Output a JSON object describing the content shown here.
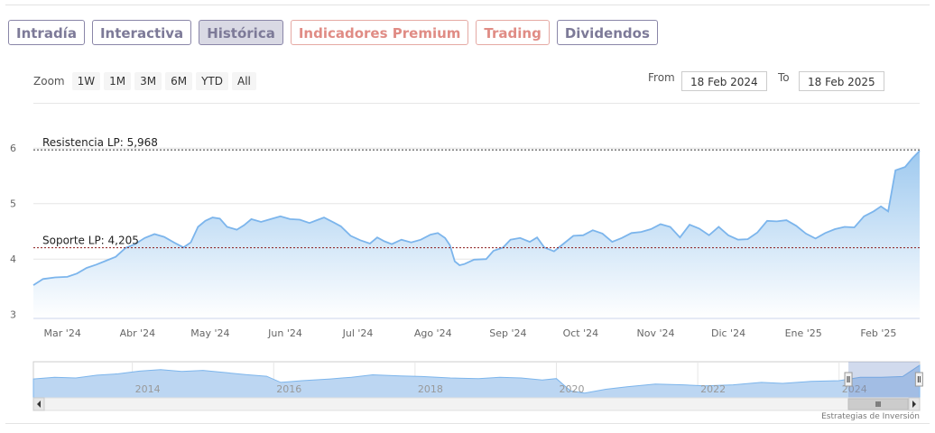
{
  "tabs": [
    {
      "label": "Intradía",
      "active": false,
      "premium": false
    },
    {
      "label": "Interactiva",
      "active": false,
      "premium": false
    },
    {
      "label": "Histórica",
      "active": true,
      "premium": false
    },
    {
      "label": "Indicadores Premium",
      "active": false,
      "premium": true
    },
    {
      "label": "Trading",
      "active": false,
      "premium": true
    },
    {
      "label": "Dividendos",
      "active": false,
      "premium": false
    }
  ],
  "zoom": {
    "label": "Zoom",
    "buttons": [
      "1W",
      "1M",
      "3M",
      "6M",
      "YTD",
      "All"
    ]
  },
  "range": {
    "from_label": "From",
    "from_value": "18 Feb 2024",
    "to_label": "To",
    "to_value": "18 Feb 2025"
  },
  "credit": "Estrategias de Inversión",
  "colors": {
    "line": "#7cb5ec",
    "fill_top": "#9ec9ef",
    "fill_bottom": "#ffffff",
    "tab_text": "#7d7a98",
    "premium_text": "#e08c85",
    "resistance": "#333333",
    "support": "#8b1a1a"
  },
  "chart_data": {
    "type": "area",
    "x_ticks": [
      "Mar '24",
      "Abr '24",
      "May '24",
      "Jun '24",
      "Jul '24",
      "Ago '24",
      "Sep '24",
      "Oct '24",
      "Nov '24",
      "Dic '24",
      "Ene '25",
      "Feb '25"
    ],
    "y_ticks": [
      3,
      4,
      5,
      6
    ],
    "ylim": [
      2.93,
      6.8
    ],
    "xlim": [
      "2024-02-18",
      "2025-02-18"
    ],
    "plot_lines": [
      {
        "label": "Resistencia LP: 5,968",
        "value": 5.968,
        "style": "dashed"
      },
      {
        "label": "Soporte LP: 4,205",
        "value": 4.205,
        "style": "dashed"
      }
    ],
    "series": [
      {
        "points": [
          [
            "2024-02-18",
            3.53
          ],
          [
            "2024-02-22",
            3.64
          ],
          [
            "2024-02-27",
            3.67
          ],
          [
            "2024-03-03",
            3.68
          ],
          [
            "2024-03-07",
            3.74
          ],
          [
            "2024-03-11",
            3.84
          ],
          [
            "2024-03-15",
            3.9
          ],
          [
            "2024-03-19",
            3.97
          ],
          [
            "2024-03-23",
            4.04
          ],
          [
            "2024-03-27",
            4.2
          ],
          [
            "2024-03-31",
            4.27
          ],
          [
            "2024-04-04",
            4.38
          ],
          [
            "2024-04-08",
            4.45
          ],
          [
            "2024-04-12",
            4.4
          ],
          [
            "2024-04-16",
            4.3
          ],
          [
            "2024-04-20",
            4.21
          ],
          [
            "2024-04-23",
            4.3
          ],
          [
            "2024-04-26",
            4.58
          ],
          [
            "2024-04-29",
            4.69
          ],
          [
            "2024-05-02",
            4.75
          ],
          [
            "2024-05-05",
            4.73
          ],
          [
            "2024-05-08",
            4.58
          ],
          [
            "2024-05-12",
            4.53
          ],
          [
            "2024-05-15",
            4.61
          ],
          [
            "2024-05-18",
            4.72
          ],
          [
            "2024-05-22",
            4.67
          ],
          [
            "2024-05-26",
            4.72
          ],
          [
            "2024-05-30",
            4.77
          ],
          [
            "2024-06-03",
            4.72
          ],
          [
            "2024-06-07",
            4.71
          ],
          [
            "2024-06-11",
            4.65
          ],
          [
            "2024-06-14",
            4.7
          ],
          [
            "2024-06-17",
            4.75
          ],
          [
            "2024-06-21",
            4.66
          ],
          [
            "2024-06-24",
            4.59
          ],
          [
            "2024-06-28",
            4.42
          ],
          [
            "2024-07-02",
            4.34
          ],
          [
            "2024-07-06",
            4.28
          ],
          [
            "2024-07-09",
            4.39
          ],
          [
            "2024-07-12",
            4.32
          ],
          [
            "2024-07-15",
            4.27
          ],
          [
            "2024-07-19",
            4.35
          ],
          [
            "2024-07-23",
            4.3
          ],
          [
            "2024-07-27",
            4.35
          ],
          [
            "2024-07-31",
            4.44
          ],
          [
            "2024-08-03",
            4.47
          ],
          [
            "2024-08-06",
            4.38
          ],
          [
            "2024-08-08",
            4.25
          ],
          [
            "2024-08-10",
            3.96
          ],
          [
            "2024-08-12",
            3.89
          ],
          [
            "2024-08-14",
            3.91
          ],
          [
            "2024-08-18",
            3.99
          ],
          [
            "2024-08-23",
            4.0
          ],
          [
            "2024-08-26",
            4.15
          ],
          [
            "2024-08-30",
            4.21
          ],
          [
            "2024-09-02",
            4.35
          ],
          [
            "2024-09-06",
            4.38
          ],
          [
            "2024-09-10",
            4.31
          ],
          [
            "2024-09-13",
            4.39
          ],
          [
            "2024-09-16",
            4.21
          ],
          [
            "2024-09-20",
            4.14
          ],
          [
            "2024-09-24",
            4.28
          ],
          [
            "2024-09-28",
            4.42
          ],
          [
            "2024-10-02",
            4.43
          ],
          [
            "2024-10-06",
            4.52
          ],
          [
            "2024-10-10",
            4.46
          ],
          [
            "2024-10-14",
            4.31
          ],
          [
            "2024-10-18",
            4.38
          ],
          [
            "2024-10-22",
            4.47
          ],
          [
            "2024-10-26",
            4.49
          ],
          [
            "2024-10-30",
            4.54
          ],
          [
            "2024-11-03",
            4.63
          ],
          [
            "2024-11-07",
            4.58
          ],
          [
            "2024-11-11",
            4.39
          ],
          [
            "2024-11-15",
            4.62
          ],
          [
            "2024-11-19",
            4.55
          ],
          [
            "2024-11-23",
            4.43
          ],
          [
            "2024-11-27",
            4.58
          ],
          [
            "2024-12-01",
            4.43
          ],
          [
            "2024-12-05",
            4.35
          ],
          [
            "2024-12-09",
            4.36
          ],
          [
            "2024-12-13",
            4.48
          ],
          [
            "2024-12-17",
            4.69
          ],
          [
            "2024-12-21",
            4.68
          ],
          [
            "2024-12-25",
            4.7
          ],
          [
            "2024-12-29",
            4.6
          ],
          [
            "2025-01-02",
            4.46
          ],
          [
            "2025-01-06",
            4.37
          ],
          [
            "2025-01-10",
            4.47
          ],
          [
            "2025-01-14",
            4.54
          ],
          [
            "2025-01-18",
            4.58
          ],
          [
            "2025-01-22",
            4.57
          ],
          [
            "2025-01-26",
            4.77
          ],
          [
            "2025-01-30",
            4.86
          ],
          [
            "2025-02-02",
            4.95
          ],
          [
            "2025-02-05",
            4.86
          ],
          [
            "2025-02-08",
            5.6
          ],
          [
            "2025-02-12",
            5.66
          ],
          [
            "2025-02-15",
            5.82
          ],
          [
            "2025-02-18",
            5.95
          ]
        ]
      }
    ],
    "navigator": {
      "x_ticks": [
        "2014",
        "2016",
        "2018",
        "2020",
        "2022",
        "2024"
      ],
      "x_range": [
        2012.6,
        2025.14
      ],
      "selected_range": [
        "2024-02-18",
        "2025-02-18"
      ],
      "points": [
        [
          2012.6,
          0.55
        ],
        [
          2012.9,
          0.6
        ],
        [
          2013.2,
          0.58
        ],
        [
          2013.5,
          0.66
        ],
        [
          2013.8,
          0.7
        ],
        [
          2014.1,
          0.78
        ],
        [
          2014.4,
          0.82
        ],
        [
          2014.7,
          0.77
        ],
        [
          2015.0,
          0.8
        ],
        [
          2015.3,
          0.74
        ],
        [
          2015.6,
          0.68
        ],
        [
          2015.9,
          0.63
        ],
        [
          2016.1,
          0.45
        ],
        [
          2016.4,
          0.5
        ],
        [
          2016.8,
          0.55
        ],
        [
          2017.1,
          0.6
        ],
        [
          2017.4,
          0.67
        ],
        [
          2017.8,
          0.64
        ],
        [
          2018.1,
          0.62
        ],
        [
          2018.5,
          0.58
        ],
        [
          2018.9,
          0.56
        ],
        [
          2019.2,
          0.6
        ],
        [
          2019.5,
          0.58
        ],
        [
          2019.8,
          0.52
        ],
        [
          2020.0,
          0.56
        ],
        [
          2020.2,
          0.2
        ],
        [
          2020.4,
          0.14
        ],
        [
          2020.7,
          0.25
        ],
        [
          2021.0,
          0.32
        ],
        [
          2021.4,
          0.4
        ],
        [
          2021.8,
          0.38
        ],
        [
          2022.1,
          0.35
        ],
        [
          2022.5,
          0.38
        ],
        [
          2022.9,
          0.45
        ],
        [
          2023.2,
          0.42
        ],
        [
          2023.6,
          0.48
        ],
        [
          2024.0,
          0.5
        ],
        [
          2024.3,
          0.6
        ],
        [
          2024.6,
          0.6
        ],
        [
          2024.9,
          0.62
        ],
        [
          2025.14,
          0.95
        ]
      ]
    }
  }
}
